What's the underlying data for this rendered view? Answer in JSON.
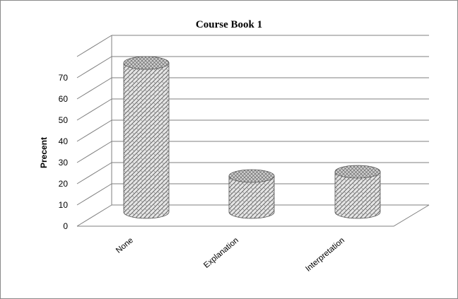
{
  "chart_data": {
    "type": "bar",
    "style": "3d-cylinder",
    "title": "Course Book 1",
    "xlabel": "",
    "ylabel": "Precent",
    "categories": [
      "None",
      "Explanation",
      "Interpretation"
    ],
    "values": [
      69,
      17,
      19
    ],
    "ylim": [
      0,
      70
    ],
    "yticks": [
      0,
      10,
      20,
      30,
      40,
      50,
      60,
      70
    ],
    "grid": true,
    "legend": "none",
    "colors": {
      "bar_fill": "#e0e0e0",
      "bar_pattern": "#555555",
      "grid": "#7f7f7f",
      "axis": "#7f7f7f"
    }
  }
}
